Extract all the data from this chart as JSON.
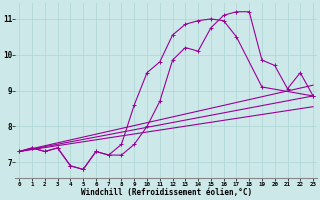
{
  "x_values": [
    0,
    1,
    2,
    3,
    4,
    5,
    6,
    7,
    8,
    9,
    10,
    11,
    12,
    13,
    14,
    15,
    16,
    17,
    18,
    19,
    20,
    21,
    22,
    23
  ],
  "line1_y": [
    7.3,
    7.4,
    7.3,
    7.4,
    6.9,
    6.8,
    7.3,
    7.2,
    7.2,
    7.5,
    8.0,
    8.7,
    9.85,
    10.2,
    10.1,
    10.75,
    11.1,
    11.2,
    11.2,
    9.85,
    9.7,
    9.05,
    9.5,
    8.85
  ],
  "line2_x": [
    0,
    1,
    2,
    3,
    4,
    5,
    6,
    7,
    8,
    9,
    10,
    11,
    12,
    13,
    14,
    15,
    16,
    17,
    19,
    23
  ],
  "line2_y": [
    7.3,
    7.4,
    7.3,
    7.4,
    6.9,
    6.8,
    7.3,
    7.2,
    7.5,
    8.6,
    9.5,
    9.8,
    10.55,
    10.85,
    10.95,
    11.0,
    10.95,
    10.5,
    9.1,
    8.85
  ],
  "line3_x": [
    0,
    23
  ],
  "line3_y": [
    7.3,
    8.55
  ],
  "line4_x": [
    0,
    23
  ],
  "line4_y": [
    7.3,
    8.85
  ],
  "line5_x": [
    0,
    23
  ],
  "line5_y": [
    7.3,
    9.15
  ],
  "color": "#990099",
  "bg_color": "#cce8e8",
  "grid_color": "#aad4d4",
  "xlabel": "Windchill (Refroidissement éolien,°C)",
  "y_ticks": [
    7,
    8,
    9,
    10,
    11
  ],
  "x_ticks": [
    0,
    1,
    2,
    3,
    4,
    5,
    6,
    7,
    8,
    9,
    10,
    11,
    12,
    13,
    14,
    15,
    16,
    17,
    18,
    19,
    20,
    21,
    22,
    23
  ],
  "ylim": [
    6.55,
    11.45
  ],
  "xlim": [
    -0.3,
    23.3
  ]
}
